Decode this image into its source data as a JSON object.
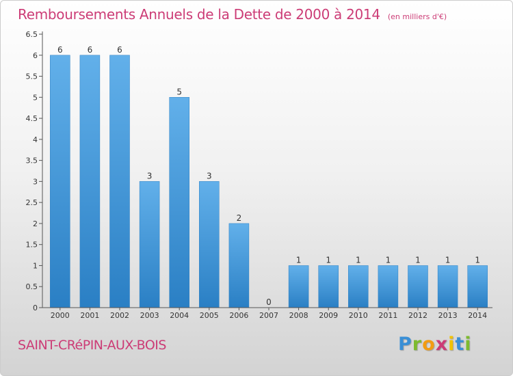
{
  "header": {
    "title": "Remboursements Annuels de la Dette de 2000 à 2014",
    "subtitle": "(en milliers d'€)"
  },
  "footer": {
    "town": "SAINT-CRéPIN-AUX-BOIS",
    "logo": {
      "letters": [
        "P",
        "r",
        "o",
        "x",
        "i",
        "t",
        "i"
      ],
      "colors": [
        "#3a8fd6",
        "#7dbb2e",
        "#f39c12",
        "#cc3c76",
        "#f2c200",
        "#3a8fd6",
        "#7dbb2e"
      ]
    }
  },
  "colors": {
    "bar_light": "#62b0ea",
    "bar_dark": "#2a7fc4",
    "title": "#cc3c76"
  },
  "chart_data": {
    "type": "bar",
    "categories": [
      "2000",
      "2001",
      "2002",
      "2003",
      "2004",
      "2005",
      "2006",
      "2007",
      "2008",
      "2009",
      "2010",
      "2011",
      "2012",
      "2013",
      "2014"
    ],
    "values": [
      6,
      6,
      6,
      3,
      5,
      3,
      2,
      0,
      1,
      1,
      1,
      1,
      1,
      1,
      1
    ],
    "data_labels": [
      "6",
      "6",
      "6",
      "3",
      "5",
      "3",
      "2",
      "0",
      "1",
      "1",
      "1",
      "1",
      "1",
      "1",
      "1"
    ],
    "yticks": [
      "0",
      "0.5",
      "1",
      "1.5",
      "2",
      "2.5",
      "3",
      "3.5",
      "4",
      "4.5",
      "5",
      "5.5",
      "6",
      "6.5"
    ],
    "ylim": [
      0,
      6.5
    ],
    "title": "Remboursements Annuels de la Dette de 2000 à 2014",
    "xlabel": "",
    "ylabel": "",
    "grid": false,
    "legend": "none"
  }
}
